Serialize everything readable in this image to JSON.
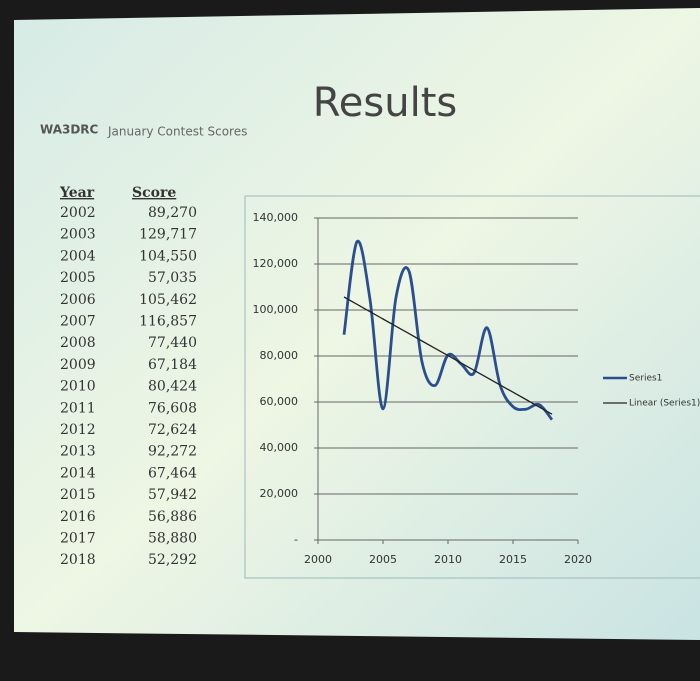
{
  "slide": {
    "title": "Results",
    "call_sign": "WA3DRC",
    "subtitle": "January Contest Scores"
  },
  "table": {
    "headers": [
      "Year",
      "Score"
    ],
    "rows": [
      [
        "2002",
        "89,270"
      ],
      [
        "2003",
        "129,717"
      ],
      [
        "2004",
        "104,550"
      ],
      [
        "2005",
        "57,035"
      ],
      [
        "2006",
        "105,462"
      ],
      [
        "2007",
        "116,857"
      ],
      [
        "2008",
        "77,440"
      ],
      [
        "2009",
        "67,184"
      ],
      [
        "2010",
        "80,424"
      ],
      [
        "2011",
        "76,608"
      ],
      [
        "2012",
        "72,624"
      ],
      [
        "2013",
        "92,272"
      ],
      [
        "2014",
        "67,464"
      ],
      [
        "2015",
        "57,942"
      ],
      [
        "2016",
        "56,886"
      ],
      [
        "2017",
        "58,880"
      ],
      [
        "2018",
        "52,292"
      ]
    ]
  },
  "chart_data": {
    "type": "line",
    "x": [
      2002,
      2003,
      2004,
      2005,
      2006,
      2007,
      2008,
      2009,
      2010,
      2011,
      2012,
      2013,
      2014,
      2015,
      2016,
      2017,
      2018
    ],
    "series": [
      {
        "name": "Series1",
        "color": "#2b4f8e",
        "smooth": true,
        "values": [
          89270,
          129717,
          104550,
          57035,
          105462,
          116857,
          77440,
          67184,
          80424,
          76608,
          72624,
          92272,
          67464,
          57942,
          56886,
          58880,
          52292
        ]
      },
      {
        "name": "Linear (Series1)",
        "color": "#222222",
        "smooth": false,
        "values": [
          105643,
          102459,
          99275,
          96091,
          92907,
          89723,
          86539,
          83355,
          80171,
          76987,
          73803,
          70619,
          67435,
          64251,
          61067,
          57883,
          54699
        ]
      }
    ],
    "xlim": [
      2000,
      2020
    ],
    "xticks": [
      2000,
      2005,
      2010,
      2015,
      2020
    ],
    "ylim": [
      0,
      140000
    ],
    "yticks": [
      {
        "value": 0,
        "label": "-"
      },
      {
        "value": 20000,
        "label": "20,000"
      },
      {
        "value": 40000,
        "label": "40,000"
      },
      {
        "value": 60000,
        "label": "60,000"
      },
      {
        "value": 80000,
        "label": "80,000"
      },
      {
        "value": 100000,
        "label": "100,000"
      },
      {
        "value": 120000,
        "label": "120,000"
      },
      {
        "value": 140000,
        "label": "140,000"
      }
    ],
    "grid": true,
    "legend": "right"
  }
}
